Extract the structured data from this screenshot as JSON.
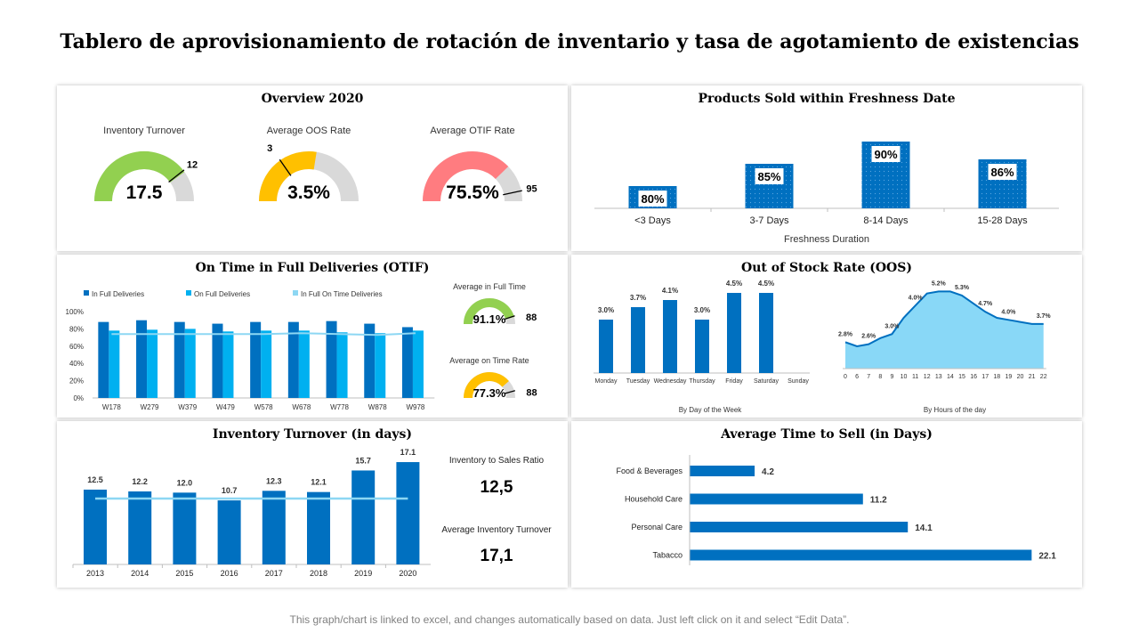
{
  "page_title": "Tablero de aprovisionamiento de rotación de inventario y tasa de agotamiento de existencias",
  "footer": "This graph/chart is linked to excel, and changes automatically based on data. Just left click on it and select “Edit Data”.",
  "colors": {
    "blue_dark": "#0070C0",
    "blue_light": "#00B0F0",
    "line_light": "#8DD7F3",
    "green": "#92D050",
    "yellow": "#FFC000",
    "red": "#FF7C80",
    "gray": "#D9D9D9",
    "area": "#89D8F7",
    "area_line": "#0070C0"
  },
  "panels": {
    "overview": "Overview 2020",
    "freshness": "Products Sold within Freshness Date",
    "otif": "On Time in Full Deliveries (OTIF)",
    "oos": "Out of Stock Rate (OOS)",
    "turnover": "Inventory Turnover (in days)",
    "time_to_sell": "Average Time to Sell (in Days)"
  },
  "turnover_side": {
    "ratio_label": "Inventory to Sales Ratio",
    "ratio_value": "12,5",
    "avg_label": "Average Inventory Turnover",
    "avg_value": "17,1"
  },
  "chart_data": [
    {
      "type": "gauge",
      "title": "Inventory Turnover",
      "value_label": "17.5",
      "fill_fraction": 0.8,
      "marker_label": "12",
      "color": "green"
    },
    {
      "type": "gauge",
      "title": "Average OOS Rate",
      "value_label": "3.5%",
      "fill_fraction": 0.55,
      "marker_label": "3",
      "color": "yellow"
    },
    {
      "type": "gauge",
      "title": "Average OTIF Rate",
      "value_label": "75.5%",
      "fill_fraction": 0.755,
      "marker_label": "95",
      "color": "red"
    },
    {
      "type": "bar",
      "title": "Products Sold within Freshness Date",
      "xlabel": "Freshness Duration",
      "categories": [
        "<3 Days",
        "3-7 Days",
        "8-14 Days",
        "15-28 Days"
      ],
      "values": [
        80,
        85,
        90,
        86
      ],
      "labels": [
        "80%",
        "85%",
        "90%",
        "86%"
      ],
      "ylim": [
        75,
        91
      ]
    },
    {
      "type": "bar",
      "title": "On Time in Full Deliveries (OTIF)",
      "categories": [
        "W178",
        "W279",
        "W379",
        "W479",
        "W578",
        "W678",
        "W778",
        "W878",
        "W978"
      ],
      "yticks": [
        "100%",
        "80%",
        "60%",
        "40%",
        "20%",
        "0%"
      ],
      "ylim": [
        0,
        100
      ],
      "series": [
        {
          "name": "In Full Deliveries",
          "values": [
            88,
            90,
            88,
            86,
            88,
            88,
            89,
            86,
            82
          ]
        },
        {
          "name": "On Full Deliveries",
          "values": [
            78,
            79,
            80,
            77,
            78,
            78,
            76,
            75,
            78
          ]
        },
        {
          "name": "In Full On Time Deliveries",
          "type": "line",
          "values": [
            74,
            74,
            74,
            74,
            74,
            75,
            74,
            73,
            75
          ]
        }
      ]
    },
    {
      "type": "gauge",
      "title": "Average in Full Time",
      "value_label": "91.1%",
      "fill_fraction": 0.911,
      "marker_label": "88",
      "color": "green"
    },
    {
      "type": "gauge",
      "title": "Average on Time Rate",
      "value_label": "77.3%",
      "fill_fraction": 0.773,
      "marker_label": "88",
      "color": "yellow"
    },
    {
      "type": "bar",
      "title": "Out of Stock Rate (OOS)",
      "xlabel": "By Day of the Week",
      "categories": [
        "Monday",
        "Tuesday",
        "Wednesday",
        "Thursday",
        "Friday",
        "Saturday",
        "Sunday"
      ],
      "values": [
        3.0,
        3.7,
        4.1,
        3.0,
        4.5,
        4.5,
        null
      ],
      "labels": [
        "3.0%",
        "3.7%",
        "4.1%",
        "3.0%",
        "4.5%",
        "4.5%",
        ""
      ],
      "ylim": [
        0,
        5
      ]
    },
    {
      "type": "area",
      "xlabel": "By Hours of the day",
      "x": [
        "0",
        "6",
        "7",
        "8",
        "9",
        "10",
        "11",
        "12",
        "13",
        "14",
        "15",
        "16",
        "17",
        "18",
        "19",
        "20",
        "21",
        "22"
      ],
      "values": [
        2.8,
        2.6,
        2.7,
        3.0,
        3.2,
        4.0,
        4.6,
        5.2,
        5.3,
        5.3,
        5.1,
        4.7,
        4.3,
        4.0,
        3.9,
        3.8,
        3.7,
        3.7
      ],
      "labels": {
        "0": "2.8%",
        "2": "2.6%",
        "4": "3.0%",
        "6": "4.0%",
        "8": "5.2%",
        "10": "5.3%",
        "12": "4.7%",
        "14": "4.0%",
        "17": "3.7%"
      },
      "ylim": [
        1.5,
        5.8
      ]
    },
    {
      "type": "bar",
      "title": "Inventory Turnover (in days)",
      "categories": [
        "2013",
        "2014",
        "2015",
        "2016",
        "2017",
        "2018",
        "2019",
        "2020"
      ],
      "values": [
        12.5,
        12.2,
        12.0,
        10.7,
        12.3,
        12.1,
        15.7,
        17.1
      ],
      "labels": [
        "12.5",
        "12.2",
        "12.0",
        "10.7",
        "12.3",
        "12.1",
        "15.7",
        "17.1"
      ],
      "line_value": 11.0,
      "ylim": [
        0,
        18
      ]
    },
    {
      "type": "bar",
      "orientation": "horizontal",
      "title": "Average Time to Sell (in Days)",
      "categories": [
        "Food & Beverages",
        "Household Care",
        "Personal Care",
        "Tabacco"
      ],
      "values": [
        4.2,
        11.2,
        14.1,
        22.1
      ],
      "labels": [
        "4.2",
        "11.2",
        "14.1",
        "22.1"
      ],
      "xlim": [
        0,
        23
      ]
    }
  ]
}
